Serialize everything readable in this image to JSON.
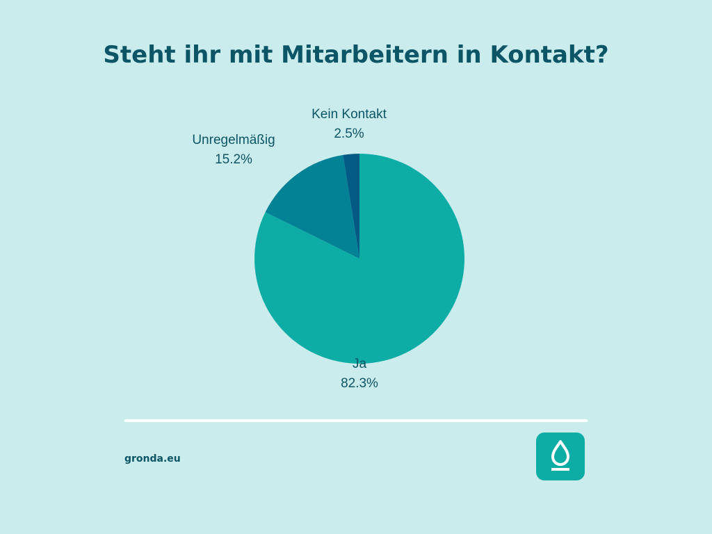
{
  "chart_data": {
    "type": "pie",
    "title": "Steht ihr mit Mitarbeitern in Kontakt?",
    "start": "top",
    "direction": "clockwise",
    "slices": [
      {
        "label": "Ja",
        "value": 82.3,
        "display": "82.3%",
        "color": "#0dada6"
      },
      {
        "label": "Unregelmäßig",
        "value": 15.2,
        "display": "15.2%",
        "color": "#038296"
      },
      {
        "label": "Kein Kontakt",
        "value": 2.5,
        "display": "2.5%",
        "color": "#035a84"
      }
    ]
  },
  "footer": {
    "site": "gronda.eu",
    "logo_icon": "drop-icon"
  },
  "colors": {
    "background": "#cbecec",
    "text": "#0b5566",
    "accent": "#0dada6"
  }
}
